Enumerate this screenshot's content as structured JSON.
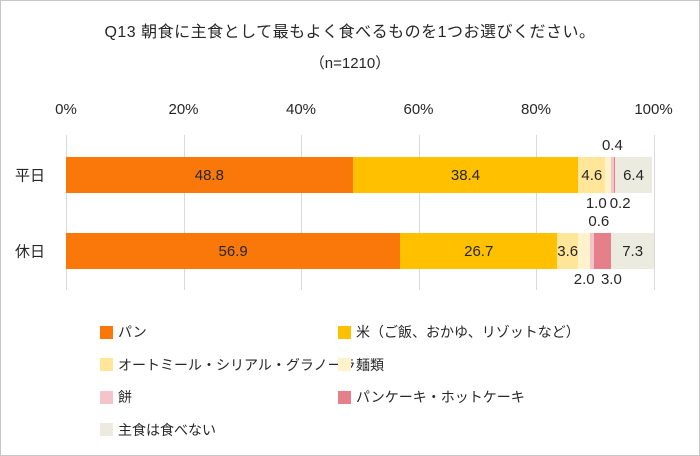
{
  "title": "Q13 朝食に主食として最もよく食べるものを1つお選びください。",
  "subtitle": "（n=1210）",
  "chart_data": {
    "type": "bar",
    "orientation": "horizontal",
    "stacked": true,
    "unit": "%",
    "grid": true,
    "legend_position": "bottom",
    "x_axis": {
      "min": 0,
      "max": 100,
      "tick_values": [
        0,
        20,
        40,
        60,
        80,
        100
      ],
      "tick_labels": [
        "0%",
        "20%",
        "40%",
        "60%",
        "80%",
        "100%"
      ]
    },
    "categories": [
      "平日",
      "休日"
    ],
    "series": [
      {
        "name": "パン",
        "color": "#F97809",
        "values": [
          48.8,
          56.9
        ]
      },
      {
        "name": "米（ご飯、おかゆ、リゾットなど）",
        "color": "#FFC000",
        "values": [
          38.4,
          26.7
        ]
      },
      {
        "name": "オートミール・シリアル・グラノーラ",
        "color": "#FFE699",
        "values": [
          4.6,
          3.6
        ]
      },
      {
        "name": "麺類",
        "color": "#FFF2CC",
        "values": [
          1.0,
          2.0
        ]
      },
      {
        "name": "餅",
        "color": "#F5C4CA",
        "values": [
          0.4,
          0.6
        ]
      },
      {
        "name": "パンケーキ・ホットケーキ",
        "color": "#E5808A",
        "values": [
          0.2,
          3.0
        ]
      },
      {
        "name": "主食は食べない",
        "color": "#ECEBE0",
        "values": [
          6.4,
          7.3
        ]
      }
    ],
    "label_layout": [
      [
        {
          "pos": "in"
        },
        {
          "pos": "in"
        },
        {
          "pos": "in"
        },
        {
          "pos": "below",
          "dx": -12
        },
        {
          "pos": "above",
          "dx": 0
        },
        {
          "pos": "below",
          "dx": 6
        },
        {
          "pos": "in"
        }
      ],
      [
        {
          "pos": "in"
        },
        {
          "pos": "in"
        },
        {
          "pos": "in"
        },
        {
          "pos": "below",
          "dx": 0
        },
        {
          "pos": "above",
          "dx": 7
        },
        {
          "pos": "below",
          "dx": 9
        },
        {
          "pos": "in"
        }
      ]
    ],
    "colors": {
      "gridline": "#d9d9d9",
      "text": "#262626",
      "canvas_border": "#c6c6c6"
    }
  }
}
